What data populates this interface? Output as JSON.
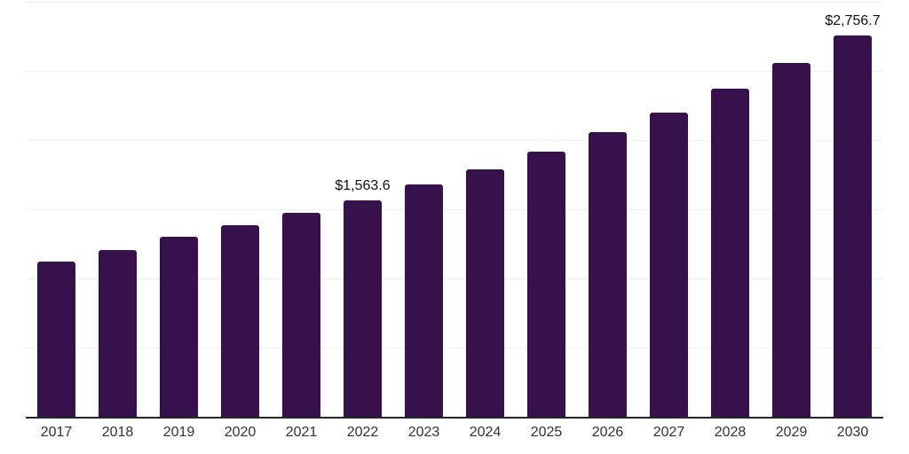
{
  "chart_data": {
    "type": "bar",
    "title": "",
    "xlabel": "",
    "ylabel": "",
    "categories": [
      "2017",
      "2018",
      "2019",
      "2020",
      "2021",
      "2022",
      "2023",
      "2024",
      "2025",
      "2026",
      "2027",
      "2028",
      "2029",
      "2030"
    ],
    "values": [
      1122,
      1205,
      1301,
      1385,
      1474,
      1563.6,
      1678,
      1789,
      1917,
      2058,
      2199,
      2372,
      2558,
      2756.7
    ],
    "data_labels": [
      null,
      null,
      null,
      null,
      null,
      "$1,563.6",
      null,
      null,
      null,
      null,
      null,
      null,
      null,
      "$2,756.7"
    ],
    "ylim": [
      0,
      3000
    ],
    "gridline_step": 500,
    "grid": true,
    "legend": false,
    "colors": {
      "bar": "#36114C",
      "axis_line": "#262626",
      "gridline": "#f2f2f2",
      "data_label": "#111111",
      "tick_label": "#333333",
      "background": "#ffffff"
    }
  }
}
